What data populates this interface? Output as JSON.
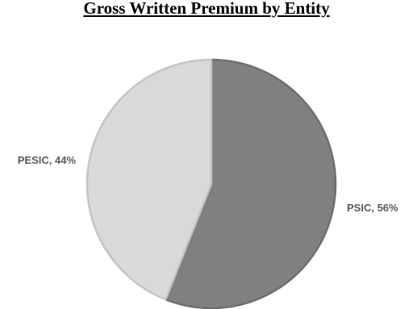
{
  "chart_data": {
    "type": "pie",
    "title": "Gross Written Premium by Entity",
    "slices": [
      {
        "label": "PSIC",
        "value": 56,
        "display": "PSIC, 56%",
        "color": "#808080"
      },
      {
        "label": "PESIC",
        "value": 44,
        "display": "PESIC, 44%",
        "color": "#d9d9d9"
      }
    ],
    "start_angle": "12 o'clock",
    "direction": "clockwise",
    "legend": "none",
    "label_color": "#595959",
    "edge_colors": [
      "#6e6e6e",
      "#c4c4c4"
    ]
  }
}
